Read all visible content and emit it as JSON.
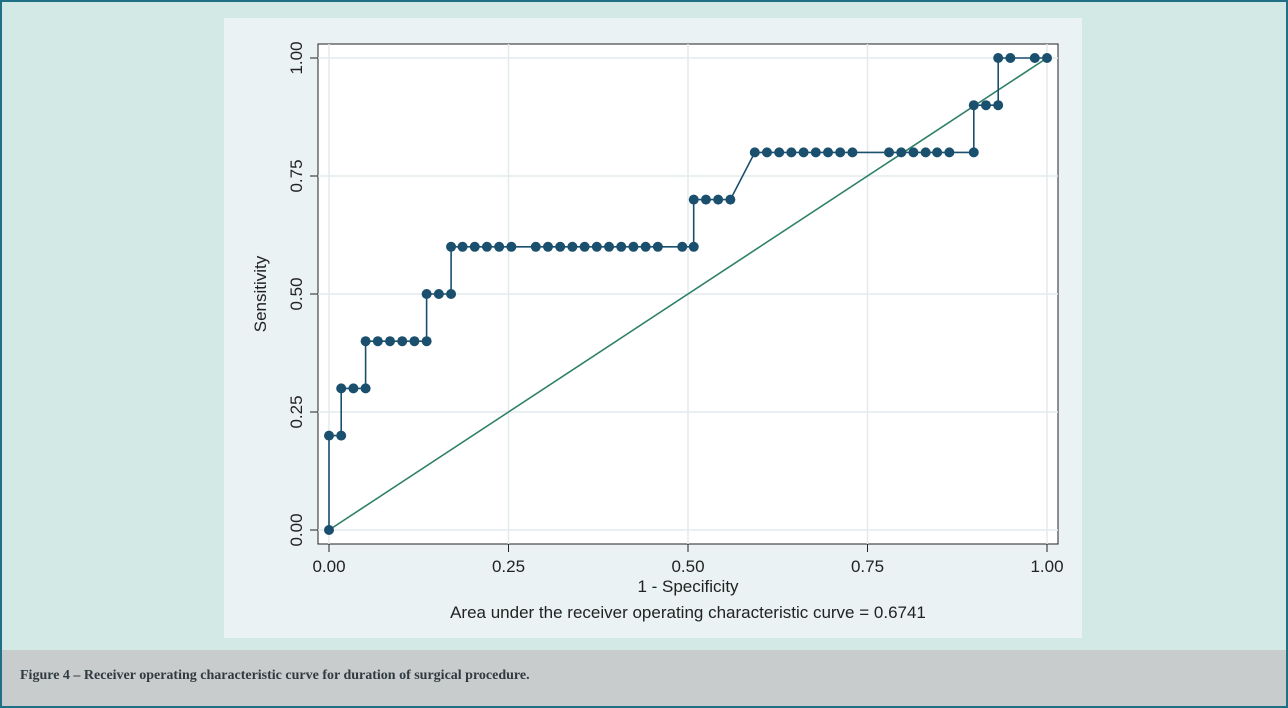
{
  "figure": {
    "caption": "Figure 4 – Receiver operating characteristic curve for duration of surgical procedure."
  },
  "chart_data": {
    "type": "line",
    "xlabel": "1 - Specificity",
    "ylabel": "Sensitivity",
    "note": "Area under the receiver operating characteristic curve = 0.6741",
    "xlim": [
      0,
      1
    ],
    "ylim": [
      0,
      1
    ],
    "x_ticks": [
      "0.00",
      "0.25",
      "0.50",
      "0.75",
      "1.00"
    ],
    "y_ticks": [
      "0.00",
      "0.25",
      "0.50",
      "0.75",
      "1.00"
    ],
    "grid": true,
    "colors": {
      "roc": "#1a4f6e",
      "reference": "#2e8068",
      "grid": "#ffffff"
    },
    "series": [
      {
        "role": "roc",
        "points": [
          [
            0.0,
            0.0
          ],
          [
            0.0,
            0.2
          ],
          [
            0.017,
            0.2
          ],
          [
            0.017,
            0.3
          ],
          [
            0.034,
            0.3
          ],
          [
            0.051,
            0.3
          ],
          [
            0.051,
            0.4
          ],
          [
            0.068,
            0.4
          ],
          [
            0.085,
            0.4
          ],
          [
            0.102,
            0.4
          ],
          [
            0.119,
            0.4
          ],
          [
            0.136,
            0.4
          ],
          [
            0.136,
            0.5
          ],
          [
            0.153,
            0.5
          ],
          [
            0.17,
            0.5
          ],
          [
            0.17,
            0.6
          ],
          [
            0.186,
            0.6
          ],
          [
            0.203,
            0.6
          ],
          [
            0.22,
            0.6
          ],
          [
            0.237,
            0.6
          ],
          [
            0.254,
            0.6
          ],
          [
            0.288,
            0.6
          ],
          [
            0.305,
            0.6
          ],
          [
            0.322,
            0.6
          ],
          [
            0.339,
            0.6
          ],
          [
            0.356,
            0.6
          ],
          [
            0.373,
            0.6
          ],
          [
            0.39,
            0.6
          ],
          [
            0.407,
            0.6
          ],
          [
            0.424,
            0.6
          ],
          [
            0.441,
            0.6
          ],
          [
            0.458,
            0.6
          ],
          [
            0.492,
            0.6
          ],
          [
            0.508,
            0.6
          ],
          [
            0.508,
            0.7
          ],
          [
            0.525,
            0.7
          ],
          [
            0.542,
            0.7
          ],
          [
            0.559,
            0.7
          ],
          [
            0.593,
            0.8
          ],
          [
            0.61,
            0.8
          ],
          [
            0.627,
            0.8
          ],
          [
            0.644,
            0.8
          ],
          [
            0.661,
            0.8
          ],
          [
            0.678,
            0.8
          ],
          [
            0.695,
            0.8
          ],
          [
            0.712,
            0.8
          ],
          [
            0.729,
            0.8
          ],
          [
            0.78,
            0.8
          ],
          [
            0.797,
            0.8
          ],
          [
            0.814,
            0.8
          ],
          [
            0.831,
            0.8
          ],
          [
            0.847,
            0.8
          ],
          [
            0.864,
            0.8
          ],
          [
            0.898,
            0.8
          ],
          [
            0.898,
            0.9
          ],
          [
            0.915,
            0.9
          ],
          [
            0.932,
            0.9
          ],
          [
            0.932,
            1.0
          ],
          [
            0.949,
            1.0
          ],
          [
            0.983,
            1.0
          ],
          [
            1.0,
            1.0
          ]
        ]
      },
      {
        "role": "reference",
        "points": [
          [
            0,
            0
          ],
          [
            1,
            1
          ]
        ]
      }
    ]
  }
}
